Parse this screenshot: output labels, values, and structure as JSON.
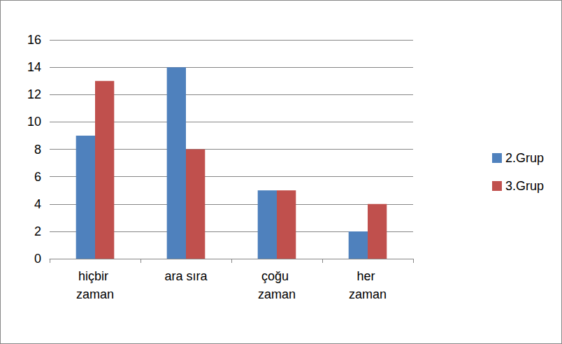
{
  "chart_data": {
    "type": "bar",
    "categories": [
      "hiçbir zaman",
      "ara sıra",
      "çoğu zaman",
      "her zaman"
    ],
    "series": [
      {
        "name": "2.Grup",
        "color": "#4f81bd",
        "values": [
          9,
          14,
          5,
          2
        ]
      },
      {
        "name": "3.Grup",
        "color": "#c0504d",
        "values": [
          13,
          8,
          5,
          4
        ]
      }
    ],
    "ylim": [
      0,
      16
    ],
    "yticks": [
      0,
      2,
      4,
      6,
      8,
      10,
      12,
      14,
      16
    ],
    "grid": true,
    "legend": "right"
  }
}
